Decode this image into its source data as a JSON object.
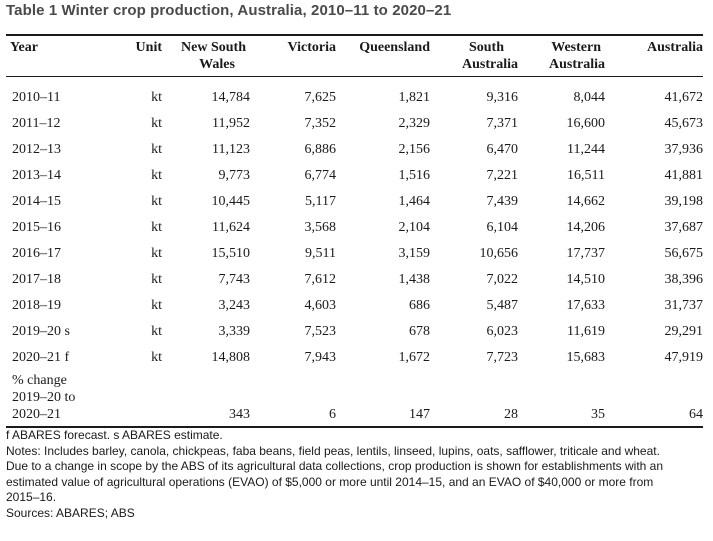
{
  "title": "Table 1 Winter crop production, Australia, 2010–11 to 2020–21",
  "headers": {
    "year": "Year",
    "unit": "Unit",
    "nsw": [
      "New South",
      "Wales"
    ],
    "vic": "Victoria",
    "qld": "Queensland",
    "sa": [
      "South",
      "Australia"
    ],
    "wa": [
      "Western",
      "Australia"
    ],
    "aus": "Australia"
  },
  "rows": [
    {
      "year": "2010–11",
      "unit": "kt",
      "nsw": "14,784",
      "vic": "7,625",
      "qld": "1,821",
      "sa": "9,316",
      "wa": "8,044",
      "aus": "41,672"
    },
    {
      "year": "2011–12",
      "unit": "kt",
      "nsw": "11,952",
      "vic": "7,352",
      "qld": "2,329",
      "sa": "7,371",
      "wa": "16,600",
      "aus": "45,673"
    },
    {
      "year": "2012–13",
      "unit": "kt",
      "nsw": "11,123",
      "vic": "6,886",
      "qld": "2,156",
      "sa": "6,470",
      "wa": "11,244",
      "aus": "37,936"
    },
    {
      "year": "2013–14",
      "unit": "kt",
      "nsw": "9,773",
      "vic": "6,774",
      "qld": "1,516",
      "sa": "7,221",
      "wa": "16,511",
      "aus": "41,881"
    },
    {
      "year": "2014–15",
      "unit": "kt",
      "nsw": "10,445",
      "vic": "5,117",
      "qld": "1,464",
      "sa": "7,439",
      "wa": "14,662",
      "aus": "39,198"
    },
    {
      "year": "2015–16",
      "unit": "kt",
      "nsw": "11,624",
      "vic": "3,568",
      "qld": "2,104",
      "sa": "6,104",
      "wa": "14,206",
      "aus": "37,687"
    },
    {
      "year": "2016–17",
      "unit": "kt",
      "nsw": "15,510",
      "vic": "9,511",
      "qld": "3,159",
      "sa": "10,656",
      "wa": "17,737",
      "aus": "56,675"
    },
    {
      "year": "2017–18",
      "unit": "kt",
      "nsw": "7,743",
      "vic": "7,612",
      "qld": "1,438",
      "sa": "7,022",
      "wa": "14,510",
      "aus": "38,396"
    },
    {
      "year": "2018–19",
      "unit": "kt",
      "nsw": "3,243",
      "vic": "4,603",
      "qld": "686",
      "sa": "5,487",
      "wa": "17,633",
      "aus": "31,737"
    },
    {
      "year": "2019–20 s",
      "unit": "kt",
      "nsw": "3,339",
      "vic": "7,523",
      "qld": "678",
      "sa": "6,023",
      "wa": "11,619",
      "aus": "29,291"
    },
    {
      "year": "2020–21 f",
      "unit": "kt",
      "nsw": "14,808",
      "vic": "7,943",
      "qld": "1,672",
      "sa": "7,723",
      "wa": "15,683",
      "aus": "47,919"
    }
  ],
  "pct_change": {
    "label": [
      "% change",
      "2019–20 to",
      "2020–21"
    ],
    "nsw": "343",
    "vic": "6",
    "qld": "147",
    "sa": "28",
    "wa": "35",
    "aus": "64"
  },
  "notes": {
    "forecast": "f ABARES forecast. s ABARES estimate.",
    "includes": "Notes: Includes barley, canola, chickpeas, faba beans, field peas, lentils, linseed, lupins, oats, safflower, triticale and wheat.",
    "scope": [
      "Due to a change in scope by the ABS of its agricultural data collections, crop production is shown for establishments with an",
      "estimated value of agricultural operations (EVAO) of $5,000 or more until 2014–15, and an EVAO of $40,000 or more from",
      "2015–16."
    ],
    "sources": "Sources: ABARES; ABS"
  }
}
